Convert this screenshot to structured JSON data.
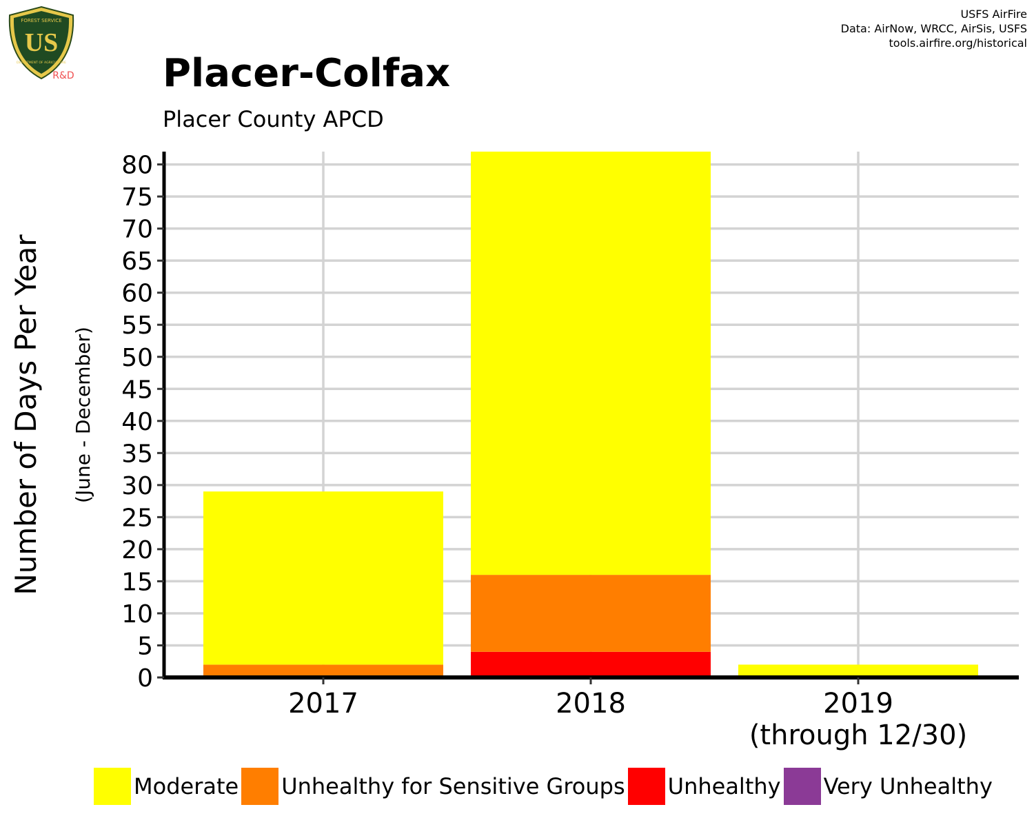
{
  "logo": {
    "top_text": "FOREST SERVICE",
    "letters": "US",
    "bottom_text": "DEPARTMENT OF AGRICULTURE",
    "suffix": "R&D"
  },
  "credits": [
    "USFS AirFire",
    "Data: AirNow, WRCC, AirSis, USFS",
    "tools.airfire.org/historical"
  ],
  "chart_data": {
    "type": "bar",
    "stacked": true,
    "title": "Placer-Colfax",
    "subtitle": "Placer County APCD",
    "ylabel": "Number of Days Per Year",
    "ylabel_sub": "(June - December)",
    "categories": [
      [
        "2017"
      ],
      [
        "2018"
      ],
      [
        "2019",
        "(through 12/30)"
      ]
    ],
    "ylim": [
      0,
      82
    ],
    "yticks": [
      0,
      5,
      10,
      15,
      20,
      25,
      30,
      35,
      40,
      45,
      50,
      55,
      60,
      65,
      70,
      75,
      80
    ],
    "grid": true,
    "legend_position": "bottom",
    "series": [
      {
        "name": "Very Unhealthy",
        "color": "#8B3A96",
        "values": [
          0,
          0,
          0
        ]
      },
      {
        "name": "Unhealthy",
        "color": "#FF0000",
        "values": [
          0,
          4,
          0
        ]
      },
      {
        "name": "Unhealthy for Sensitive Groups",
        "color": "#FF7E00",
        "values": [
          2,
          12,
          0
        ]
      },
      {
        "name": "Moderate",
        "color": "#FFFF00",
        "values": [
          27,
          66,
          2
        ]
      }
    ],
    "legend_order": [
      "Moderate",
      "Unhealthy for Sensitive Groups",
      "Unhealthy",
      "Very Unhealthy"
    ]
  }
}
